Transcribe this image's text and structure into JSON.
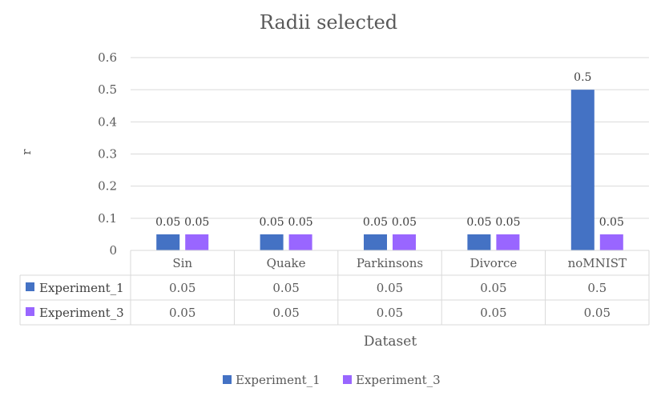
{
  "chart_data": {
    "type": "bar",
    "title": "Radii selected",
    "xlabel": "Dataset",
    "ylabel": "r",
    "ylim": [
      0,
      0.6
    ],
    "yticks": [
      "0",
      "0.1",
      "0.2",
      "0.3",
      "0.4",
      "0.5",
      "0.6"
    ],
    "grid": true,
    "legend_position": "bottom",
    "categories": [
      "Sin",
      "Quake",
      "Parkinsons",
      "Divorce",
      "noMNIST"
    ],
    "series": [
      {
        "name": "Experiment_1",
        "color": "#4472c4",
        "values": [
          0.05,
          0.05,
          0.05,
          0.05,
          0.5
        ],
        "labels": [
          "0.05",
          "0.05",
          "0.05",
          "0.05",
          "0.5"
        ]
      },
      {
        "name": "Experiment_3",
        "color": "#9966ff",
        "values": [
          0.05,
          0.05,
          0.05,
          0.05,
          0.05
        ],
        "labels": [
          "0.05",
          "0.05",
          "0.05",
          "0.05",
          "0.05"
        ]
      }
    ],
    "data_table": true
  }
}
